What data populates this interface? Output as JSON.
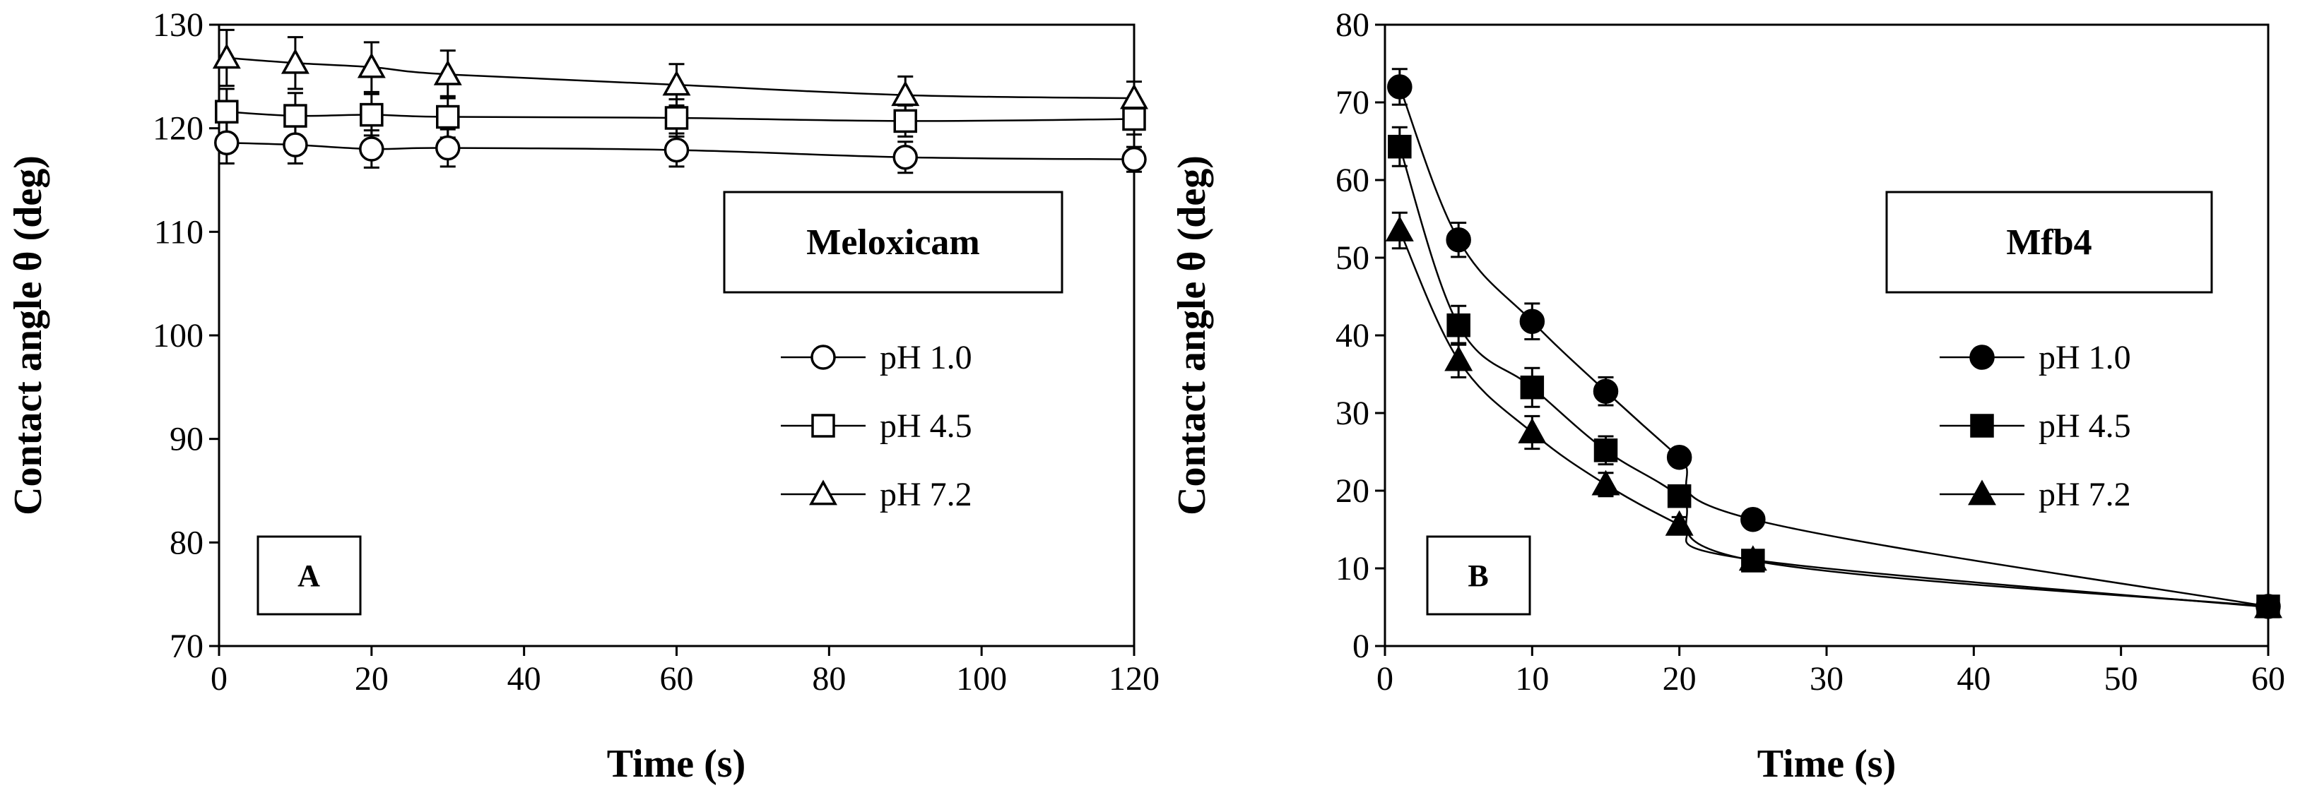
{
  "chart_data": [
    {
      "type": "line",
      "panel": "A",
      "title": "Meloxicam",
      "xlabel": "Time (s)",
      "ylabel": "Contact angle  θ (deg)",
      "xlim": [
        0,
        120
      ],
      "ylim": [
        70,
        130
      ],
      "xticks": [
        0,
        20,
        40,
        60,
        80,
        100,
        120
      ],
      "yticks": [
        70,
        80,
        90,
        100,
        110,
        120,
        130
      ],
      "grid": false,
      "legend_position": "right-middle",
      "marker_fill": "open",
      "series": [
        {
          "name": "pH 1.0",
          "marker": "circle",
          "x": [
            1,
            10,
            20,
            30,
            60,
            90,
            120
          ],
          "y": [
            118.6,
            118.4,
            118.0,
            118.1,
            117.9,
            117.2,
            117.0
          ],
          "err": [
            2.0,
            1.8,
            1.8,
            1.8,
            1.6,
            1.5,
            1.2
          ]
        },
        {
          "name": "pH 4.5",
          "marker": "square",
          "x": [
            1,
            10,
            20,
            30,
            60,
            90,
            120
          ],
          "y": [
            121.6,
            121.2,
            121.3,
            121.1,
            121.0,
            120.7,
            120.9
          ],
          "err": [
            2.2,
            2.2,
            2.0,
            2.0,
            1.8,
            1.5,
            1.5
          ]
        },
        {
          "name": "pH 7.2",
          "marker": "triangle",
          "x": [
            1,
            10,
            20,
            30,
            60,
            90,
            120
          ],
          "y": [
            126.8,
            126.3,
            125.9,
            125.2,
            124.2,
            123.2,
            122.9
          ],
          "err": [
            2.7,
            2.5,
            2.4,
            2.3,
            2.0,
            1.8,
            1.6
          ]
        }
      ]
    },
    {
      "type": "line",
      "panel": "B",
      "title": "Mfb4",
      "xlabel": "Time (s)",
      "ylabel": "Contact angle  θ (deg)",
      "xlim": [
        0,
        60
      ],
      "ylim": [
        0,
        80
      ],
      "xticks": [
        0,
        10,
        20,
        30,
        40,
        50,
        60
      ],
      "yticks": [
        0,
        10,
        20,
        30,
        40,
        50,
        60,
        70,
        80
      ],
      "grid": false,
      "legend_position": "right-middle",
      "marker_fill": "solid",
      "series": [
        {
          "name": "pH 1.0",
          "marker": "circle",
          "x": [
            1,
            5,
            10,
            15,
            20,
            25,
            60
          ],
          "y": [
            72.0,
            52.3,
            41.8,
            32.8,
            24.3,
            16.3,
            5.1
          ],
          "err": [
            2.3,
            2.2,
            2.3,
            1.8,
            1.0,
            0.7,
            0.5
          ]
        },
        {
          "name": "pH 4.5",
          "marker": "square",
          "x": [
            1,
            5,
            10,
            15,
            20,
            25,
            60
          ],
          "y": [
            64.3,
            41.3,
            33.3,
            25.2,
            19.3,
            11.0,
            5.1
          ],
          "err": [
            2.5,
            2.5,
            2.5,
            1.8,
            1.2,
            0.8,
            0.5
          ]
        },
        {
          "name": "pH 7.2",
          "marker": "triangle",
          "x": [
            1,
            5,
            10,
            15,
            20,
            25,
            60
          ],
          "y": [
            53.5,
            36.8,
            27.5,
            20.8,
            15.6,
            11.1,
            5.0
          ],
          "err": [
            2.3,
            2.2,
            2.1,
            1.5,
            1.0,
            0.7,
            0.4
          ]
        }
      ]
    }
  ]
}
